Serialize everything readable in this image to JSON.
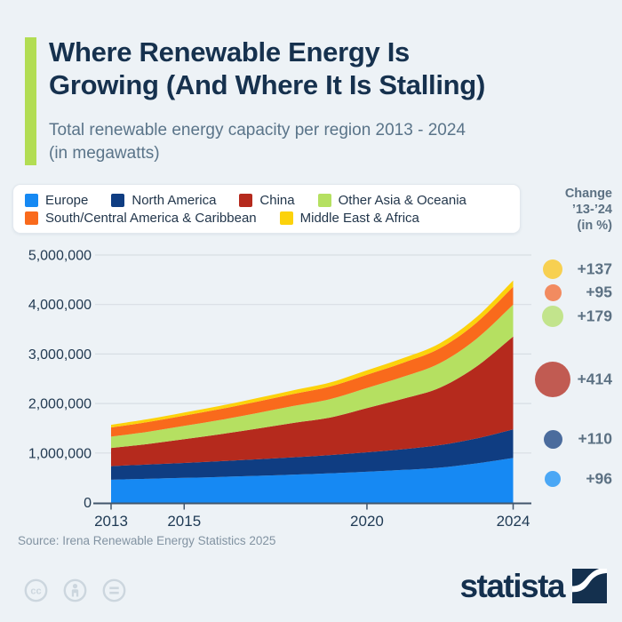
{
  "header": {
    "title_line1": "Where Renewable Energy Is",
    "title_line2": "Growing (And Where It Is Stalling)",
    "subtitle_line1": "Total renewable energy capacity per region 2013 - 2024",
    "subtitle_line2": "(in megawatts)",
    "accent_color": "#b2dd53"
  },
  "legend": {
    "rows": [
      [
        {
          "id": "europe",
          "label": "Europe",
          "color": "#1689f3"
        },
        {
          "id": "north-america",
          "label": "North America",
          "color": "#0f3d82"
        },
        {
          "id": "china",
          "label": "China",
          "color": "#b52a1d"
        },
        {
          "id": "other-asia-oceania",
          "label": "Other Asia & Oceania",
          "color": "#b5e061"
        }
      ],
      [
        {
          "id": "south-central-america-caribbean",
          "label": "South/Central America & Caribbean",
          "color": "#f96a1c"
        },
        {
          "id": "middle-east-africa",
          "label": "Middle East & Africa",
          "color": "#fcd20b"
        }
      ]
    ]
  },
  "change_panel": {
    "heading_line1": "Change",
    "heading_line2": "’13-’24",
    "heading_line3": "(in %)",
    "items": [
      {
        "region": "Middle East & Africa",
        "value": "+137",
        "color": "#f7d051",
        "diameter": 22
      },
      {
        "region": "South/Central America & Caribbean",
        "value": "+95",
        "color": "#f28b60",
        "diameter": 19
      },
      {
        "region": "Other Asia & Oceania",
        "value": "+179",
        "color": "#c2e48c",
        "diameter": 24
      },
      {
        "region": "China",
        "value": "+414",
        "color": "#c15b52",
        "diameter": 40
      },
      {
        "region": "North America",
        "value": "+110",
        "color": "#4b6c9d",
        "diameter": 21
      },
      {
        "region": "Europe",
        "value": "+96",
        "color": "#4aa7f5",
        "diameter": 18
      }
    ]
  },
  "chart_data": {
    "type": "area",
    "stacked": true,
    "title": "Where Renewable Energy Is Growing (And Where It Is Stalling)",
    "subtitle": "Total renewable energy capacity per region 2013 - 2024 (in megawatts)",
    "unit": "megawatts",
    "x": [
      2013,
      2014,
      2015,
      2016,
      2017,
      2018,
      2019,
      2020,
      2021,
      2022,
      2023,
      2024
    ],
    "x_ticks": [
      2013,
      2015,
      2020,
      2024
    ],
    "x_tick_labels": [
      "2013",
      "2015",
      "2020",
      "2024"
    ],
    "ylim": [
      0,
      5000000
    ],
    "y_ticks": [
      0,
      1000000,
      2000000,
      3000000,
      4000000,
      5000000
    ],
    "y_tick_labels": [
      "0",
      "1,000,000",
      "2,000,000",
      "3,000,000",
      "4,000,000",
      "5,000,000"
    ],
    "grid": true,
    "legend_position": "top",
    "series": [
      {
        "id": "europe",
        "name": "Europe",
        "color": "#1689f3",
        "change_pct": "+96",
        "values": [
          460000,
          478000,
          497000,
          517000,
          539000,
          563000,
          590000,
          622000,
          658000,
          705000,
          790000,
          900000
        ]
      },
      {
        "id": "north-america",
        "name": "North America",
        "color": "#0f3d82",
        "change_pct": "+110",
        "values": [
          275000,
          288000,
          302000,
          318000,
          334000,
          350000,
          368000,
          392000,
          420000,
          455000,
          505000,
          578000
        ]
      },
      {
        "id": "china",
        "name": "China",
        "color": "#b52a1d",
        "change_pct": "+414",
        "values": [
          365000,
          414000,
          480000,
          545000,
          619000,
          696000,
          759000,
          895000,
          1020000,
          1161000,
          1453000,
          1876000
        ]
      },
      {
        "id": "other-asia-oceania",
        "name": "Other Asia & Oceania",
        "color": "#b5e061",
        "change_pct": "+179",
        "values": [
          230000,
          248000,
          268000,
          290000,
          315000,
          342000,
          372000,
          405000,
          445000,
          495000,
          560000,
          642000
        ]
      },
      {
        "id": "south-central-america-caribbean",
        "name": "South/Central America & Caribbean",
        "color": "#f96a1c",
        "change_pct": "+95",
        "values": [
          185000,
          196000,
          207000,
          219000,
          231000,
          243000,
          255000,
          268000,
          282000,
          300000,
          325000,
          361000
        ]
      },
      {
        "id": "middle-east-africa",
        "name": "Middle East & Africa",
        "color": "#fcd20b",
        "change_pct": "+137",
        "values": [
          55000,
          58000,
          62000,
          66000,
          71000,
          76000,
          82000,
          88000,
          95000,
          103000,
          114000,
          130000
        ]
      }
    ]
  },
  "footer": {
    "source": "Source: Irena Renewable Energy Statistics 2025",
    "brand_wordmark": "statista",
    "license_icons": [
      "cc-icon",
      "attribution-person-icon",
      "equals-icon"
    ]
  }
}
